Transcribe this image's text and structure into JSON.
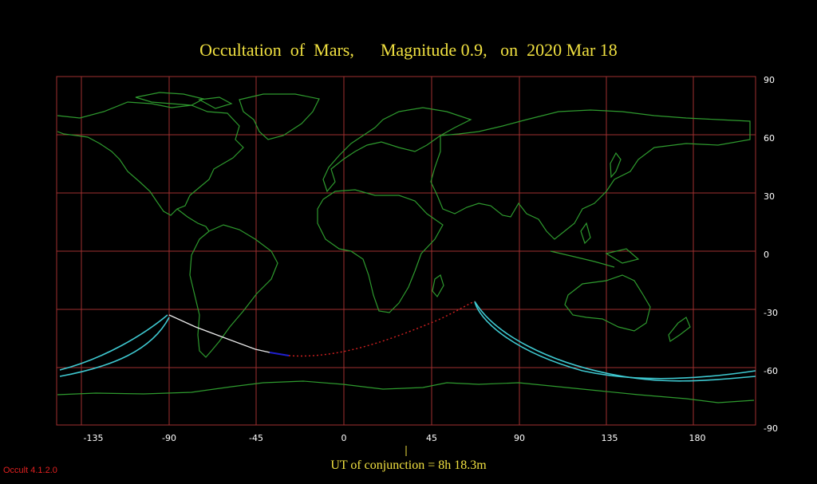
{
  "title": "Occultation  of  Mars,      Magnitude 0.9,   on  2020 Mar 18",
  "footer": "UT of conjunction =  8h 18.3m",
  "version": "Occult 4.1.2.0",
  "longitude_ticks": [
    "-135",
    "-90",
    "-45",
    "0",
    "45",
    "90",
    "135",
    "180"
  ],
  "latitude_ticks": [
    "90",
    "60",
    "30",
    "0",
    "-30",
    "-60",
    "-90"
  ],
  "colors": {
    "grid": "#a03030",
    "coast": "#2e9a2e",
    "limit_curve": "#3ec8d0",
    "track_day": "#e8e8e8",
    "track_twilight": "#2020d0",
    "track_below_horizon": "#d02020",
    "text": "#f0e040"
  }
}
